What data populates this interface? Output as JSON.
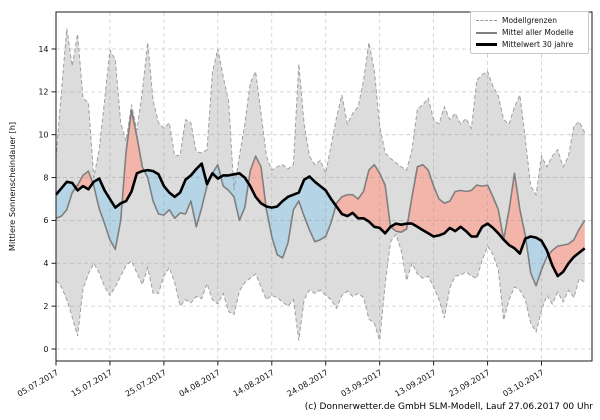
{
  "caption": "(c) Donnerwetter.de GmbH SLM-Modell, Lauf 27.06.2017 00 Uhr",
  "legend": {
    "items": [
      {
        "label": "Modellgrenzen",
        "style": "dashed-gray"
      },
      {
        "label": "Mittel aller Modelle",
        "style": "solid-gray"
      },
      {
        "label": "Mittelwert 30 jahre",
        "style": "solid-black-thick"
      }
    ]
  },
  "chart_data": {
    "type": "line",
    "title": "",
    "xlabel": "",
    "ylabel": "Mittlere Sonnenscheindauer [h]",
    "ylim": [
      -0.56,
      15.73
    ],
    "y_ticks": [
      0,
      2,
      4,
      6,
      8,
      10,
      12,
      14
    ],
    "grid": true,
    "legend_position": "upper-right",
    "n_days": 99,
    "x_ticks": [
      {
        "day": 0,
        "label": "05.07.2017"
      },
      {
        "day": 10,
        "label": "15.07.2017"
      },
      {
        "day": 20,
        "label": "25.07.2017"
      },
      {
        "day": 30,
        "label": "04.08.2017"
      },
      {
        "day": 40,
        "label": "14.08.2017"
      },
      {
        "day": 50,
        "label": "24.08.2017"
      },
      {
        "day": 60,
        "label": "03.09.2017"
      },
      {
        "day": 70,
        "label": "13.09.2017"
      },
      {
        "day": 80,
        "label": "23.09.2017"
      },
      {
        "day": 90,
        "label": "03.10.2017"
      }
    ],
    "series": [
      {
        "name": "Modellgrenzen (obere Grenze)",
        "role": "upper_bound",
        "values": [
          8.9,
          12.0,
          14.95,
          13.2,
          14.7,
          11.7,
          11.5,
          8.0,
          9.3,
          11.6,
          13.95,
          13.5,
          10.55,
          9.7,
          11.4,
          10.2,
          12.0,
          14.3,
          11.6,
          10.55,
          10.3,
          10.55,
          9.0,
          9.05,
          10.7,
          10.55,
          9.2,
          9.15,
          9.3,
          12.9,
          14.0,
          12.7,
          11.55,
          7.4,
          9.0,
          10.5,
          12.4,
          12.95,
          11.0,
          9.0,
          8.35,
          8.5,
          8.6,
          8.4,
          8.6,
          13.3,
          10.5,
          9.0,
          8.6,
          8.8,
          8.2,
          9.5,
          10.8,
          11.85,
          10.5,
          11.0,
          11.3,
          12.5,
          14.3,
          13.0,
          10.4,
          9.15,
          8.9,
          8.7,
          8.5,
          8.35,
          9.3,
          11.2,
          11.4,
          11.7,
          10.7,
          10.5,
          11.3,
          10.7,
          11.0,
          10.5,
          10.75,
          10.3,
          12.55,
          12.8,
          12.95,
          12.25,
          11.8,
          10.7,
          10.5,
          11.3,
          11.85,
          9.8,
          7.6,
          7.2,
          9.0,
          8.5,
          9.0,
          9.3,
          8.5,
          9.0,
          10.4,
          10.6,
          10.1
        ]
      },
      {
        "name": "Modellgrenzen (untere Grenze)",
        "role": "lower_bound",
        "values": [
          3.2,
          2.9,
          2.3,
          1.5,
          0.6,
          2.8,
          3.5,
          4.0,
          3.55,
          2.9,
          2.5,
          2.9,
          3.4,
          3.9,
          4.1,
          3.55,
          3.0,
          3.8,
          2.6,
          2.6,
          3.4,
          3.8,
          3.1,
          2.0,
          2.3,
          2.15,
          2.45,
          2.35,
          3.05,
          2.3,
          2.1,
          2.6,
          1.75,
          1.6,
          2.7,
          3.1,
          3.3,
          3.5,
          2.9,
          2.3,
          2.5,
          2.4,
          2.2,
          2.0,
          2.3,
          0.4,
          2.3,
          2.75,
          2.6,
          2.75,
          2.5,
          2.3,
          1.9,
          2.5,
          2.7,
          2.45,
          2.6,
          2.4,
          1.4,
          1.2,
          0.4,
          3.0,
          5.0,
          5.35,
          4.6,
          3.2,
          4.0,
          3.5,
          3.3,
          3.4,
          2.9,
          2.3,
          1.45,
          2.85,
          3.4,
          3.45,
          3.6,
          3.4,
          3.3,
          4.15,
          4.8,
          4.4,
          3.7,
          1.35,
          2.3,
          2.9,
          2.75,
          2.3,
          1.2,
          0.8,
          1.8,
          2.5,
          2.1,
          2.65,
          2.2,
          2.75,
          2.4,
          3.3,
          3.1
        ]
      },
      {
        "name": "Mittel aller Modelle",
        "role": "model_mean",
        "values": [
          6.1,
          6.2,
          6.5,
          7.3,
          7.65,
          8.1,
          8.3,
          7.6,
          6.55,
          5.85,
          5.1,
          4.65,
          6.0,
          9.2,
          11.15,
          9.9,
          8.5,
          8.0,
          6.9,
          6.3,
          6.25,
          6.5,
          6.1,
          6.35,
          6.3,
          6.9,
          5.7,
          6.6,
          7.6,
          8.2,
          8.6,
          7.6,
          7.4,
          7.1,
          6.0,
          6.6,
          8.3,
          9.0,
          8.5,
          6.5,
          5.25,
          4.4,
          4.25,
          4.95,
          6.5,
          6.9,
          6.2,
          5.55,
          5.0,
          5.1,
          5.25,
          5.9,
          6.8,
          7.1,
          7.2,
          7.2,
          7.0,
          7.35,
          8.35,
          8.6,
          8.2,
          7.65,
          5.7,
          5.5,
          5.45,
          5.6,
          7.1,
          8.5,
          8.6,
          8.35,
          7.6,
          7.0,
          6.8,
          6.9,
          7.35,
          7.4,
          7.35,
          7.4,
          7.65,
          7.6,
          7.65,
          7.1,
          6.5,
          5.1,
          6.5,
          8.2,
          6.5,
          5.3,
          3.55,
          2.95,
          3.7,
          4.3,
          4.6,
          4.8,
          4.85,
          4.9,
          5.1,
          5.6,
          6.0
        ]
      },
      {
        "name": "Mittelwert 30 jahre",
        "role": "mean_30y",
        "values": [
          7.2,
          7.5,
          7.8,
          7.75,
          7.4,
          7.6,
          7.45,
          7.8,
          7.95,
          7.4,
          7.0,
          6.6,
          6.8,
          6.9,
          7.35,
          8.2,
          8.3,
          8.35,
          8.3,
          8.15,
          7.6,
          7.3,
          7.1,
          7.3,
          7.9,
          8.1,
          8.4,
          8.65,
          7.7,
          8.2,
          7.95,
          8.1,
          8.1,
          8.15,
          8.2,
          8.0,
          7.6,
          7.1,
          6.8,
          6.65,
          6.6,
          6.65,
          6.9,
          7.1,
          7.2,
          7.3,
          7.9,
          8.05,
          7.8,
          7.6,
          7.4,
          7.0,
          6.65,
          6.3,
          6.2,
          6.35,
          6.1,
          6.1,
          5.95,
          5.7,
          5.65,
          5.4,
          5.7,
          5.85,
          5.8,
          5.85,
          5.85,
          5.7,
          5.55,
          5.4,
          5.25,
          5.3,
          5.4,
          5.65,
          5.5,
          5.7,
          5.5,
          5.25,
          5.25,
          5.7,
          5.85,
          5.65,
          5.4,
          5.1,
          4.85,
          4.7,
          4.45,
          5.15,
          5.25,
          5.2,
          5.05,
          4.6,
          3.9,
          3.4,
          3.6,
          4.0,
          4.3,
          4.5,
          4.7
        ]
      }
    ],
    "colors": {
      "band_fill": "#dcdcdc",
      "bound_line": "#9f9f9f",
      "model_mean_line": "#7f7f7f",
      "mean_30y_line": "#000000",
      "fill_above_normal": "#f3b5a9",
      "fill_below_normal": "#b5d5e6",
      "grid": "#9a9a9a",
      "frame": "#1a1a1a",
      "tick_text": "#111111"
    }
  }
}
